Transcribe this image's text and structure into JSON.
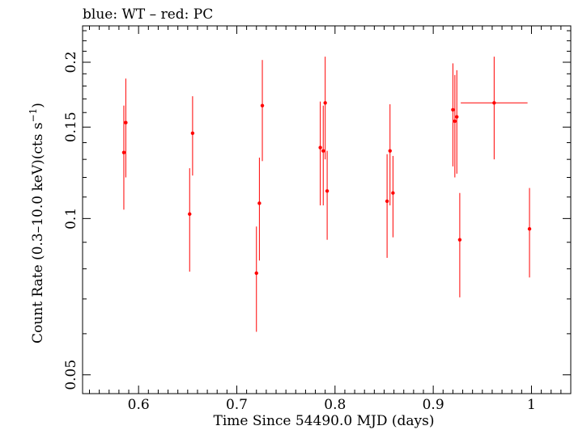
{
  "chart_data": {
    "type": "scatter",
    "title": "blue: WT – red: PC",
    "xlabel": "Time Since 54490.0 MJD (days)",
    "ylabel_main": "Count Rate (0.3–10.0 keV)(cts s",
    "ylabel_sup": "−1",
    "ylabel_end": ")",
    "xlim": [
      0.543,
      1.04
    ],
    "ylim": [
      0.046,
      0.235
    ],
    "yscale": "log",
    "x_ticks": [
      {
        "value": 0.6,
        "label": "0.6"
      },
      {
        "value": 0.7,
        "label": "0.7"
      },
      {
        "value": 0.8,
        "label": "0.8"
      },
      {
        "value": 0.9,
        "label": "0.9"
      },
      {
        "value": 1.0,
        "label": "1"
      }
    ],
    "y_ticks": [
      {
        "value": 0.05,
        "label": "0.05"
      },
      {
        "value": 0.1,
        "label": "0.1"
      },
      {
        "value": 0.15,
        "label": "0.15"
      },
      {
        "value": 0.2,
        "label": "0.2"
      }
    ],
    "series": [
      {
        "name": "PC",
        "color": "#ff0000",
        "points": [
          {
            "x": 0.585,
            "y": 0.134,
            "ylo": 0.104,
            "yhi": 0.165
          },
          {
            "x": 0.587,
            "y": 0.153,
            "ylo": 0.12,
            "yhi": 0.186
          },
          {
            "x": 0.652,
            "y": 0.102,
            "ylo": 0.079,
            "yhi": 0.125
          },
          {
            "x": 0.655,
            "y": 0.146,
            "ylo": 0.121,
            "yhi": 0.172
          },
          {
            "x": 0.72,
            "y": 0.0785,
            "ylo": 0.0605,
            "yhi": 0.0965
          },
          {
            "x": 0.723,
            "y": 0.107,
            "ylo": 0.083,
            "yhi": 0.131
          },
          {
            "x": 0.726,
            "y": 0.165,
            "ylo": 0.129,
            "yhi": 0.202
          },
          {
            "x": 0.785,
            "y": 0.137,
            "ylo": 0.106,
            "yhi": 0.168
          },
          {
            "x": 0.788,
            "y": 0.135,
            "ylo": 0.106,
            "yhi": 0.165
          },
          {
            "x": 0.79,
            "y": 0.167,
            "ylo": 0.13,
            "yhi": 0.205
          },
          {
            "x": 0.792,
            "y": 0.113,
            "ylo": 0.091,
            "yhi": 0.135
          },
          {
            "x": 0.853,
            "y": 0.108,
            "ylo": 0.084,
            "yhi": 0.133
          },
          {
            "x": 0.856,
            "y": 0.135,
            "ylo": 0.106,
            "yhi": 0.166
          },
          {
            "x": 0.859,
            "y": 0.112,
            "ylo": 0.092,
            "yhi": 0.132
          },
          {
            "x": 0.92,
            "y": 0.162,
            "ylo": 0.126,
            "yhi": 0.199
          },
          {
            "x": 0.922,
            "y": 0.154,
            "ylo": 0.12,
            "yhi": 0.189
          },
          {
            "x": 0.924,
            "y": 0.157,
            "ylo": 0.122,
            "yhi": 0.193
          },
          {
            "x": 0.927,
            "y": 0.091,
            "ylo": 0.0705,
            "yhi": 0.112
          },
          {
            "x": 0.962,
            "y": 0.167,
            "ylo": 0.13,
            "yhi": 0.205,
            "xlo": 0.928,
            "xhi": 0.996
          },
          {
            "x": 0.998,
            "y": 0.0955,
            "ylo": 0.077,
            "yhi": 0.1145
          }
        ]
      }
    ]
  }
}
